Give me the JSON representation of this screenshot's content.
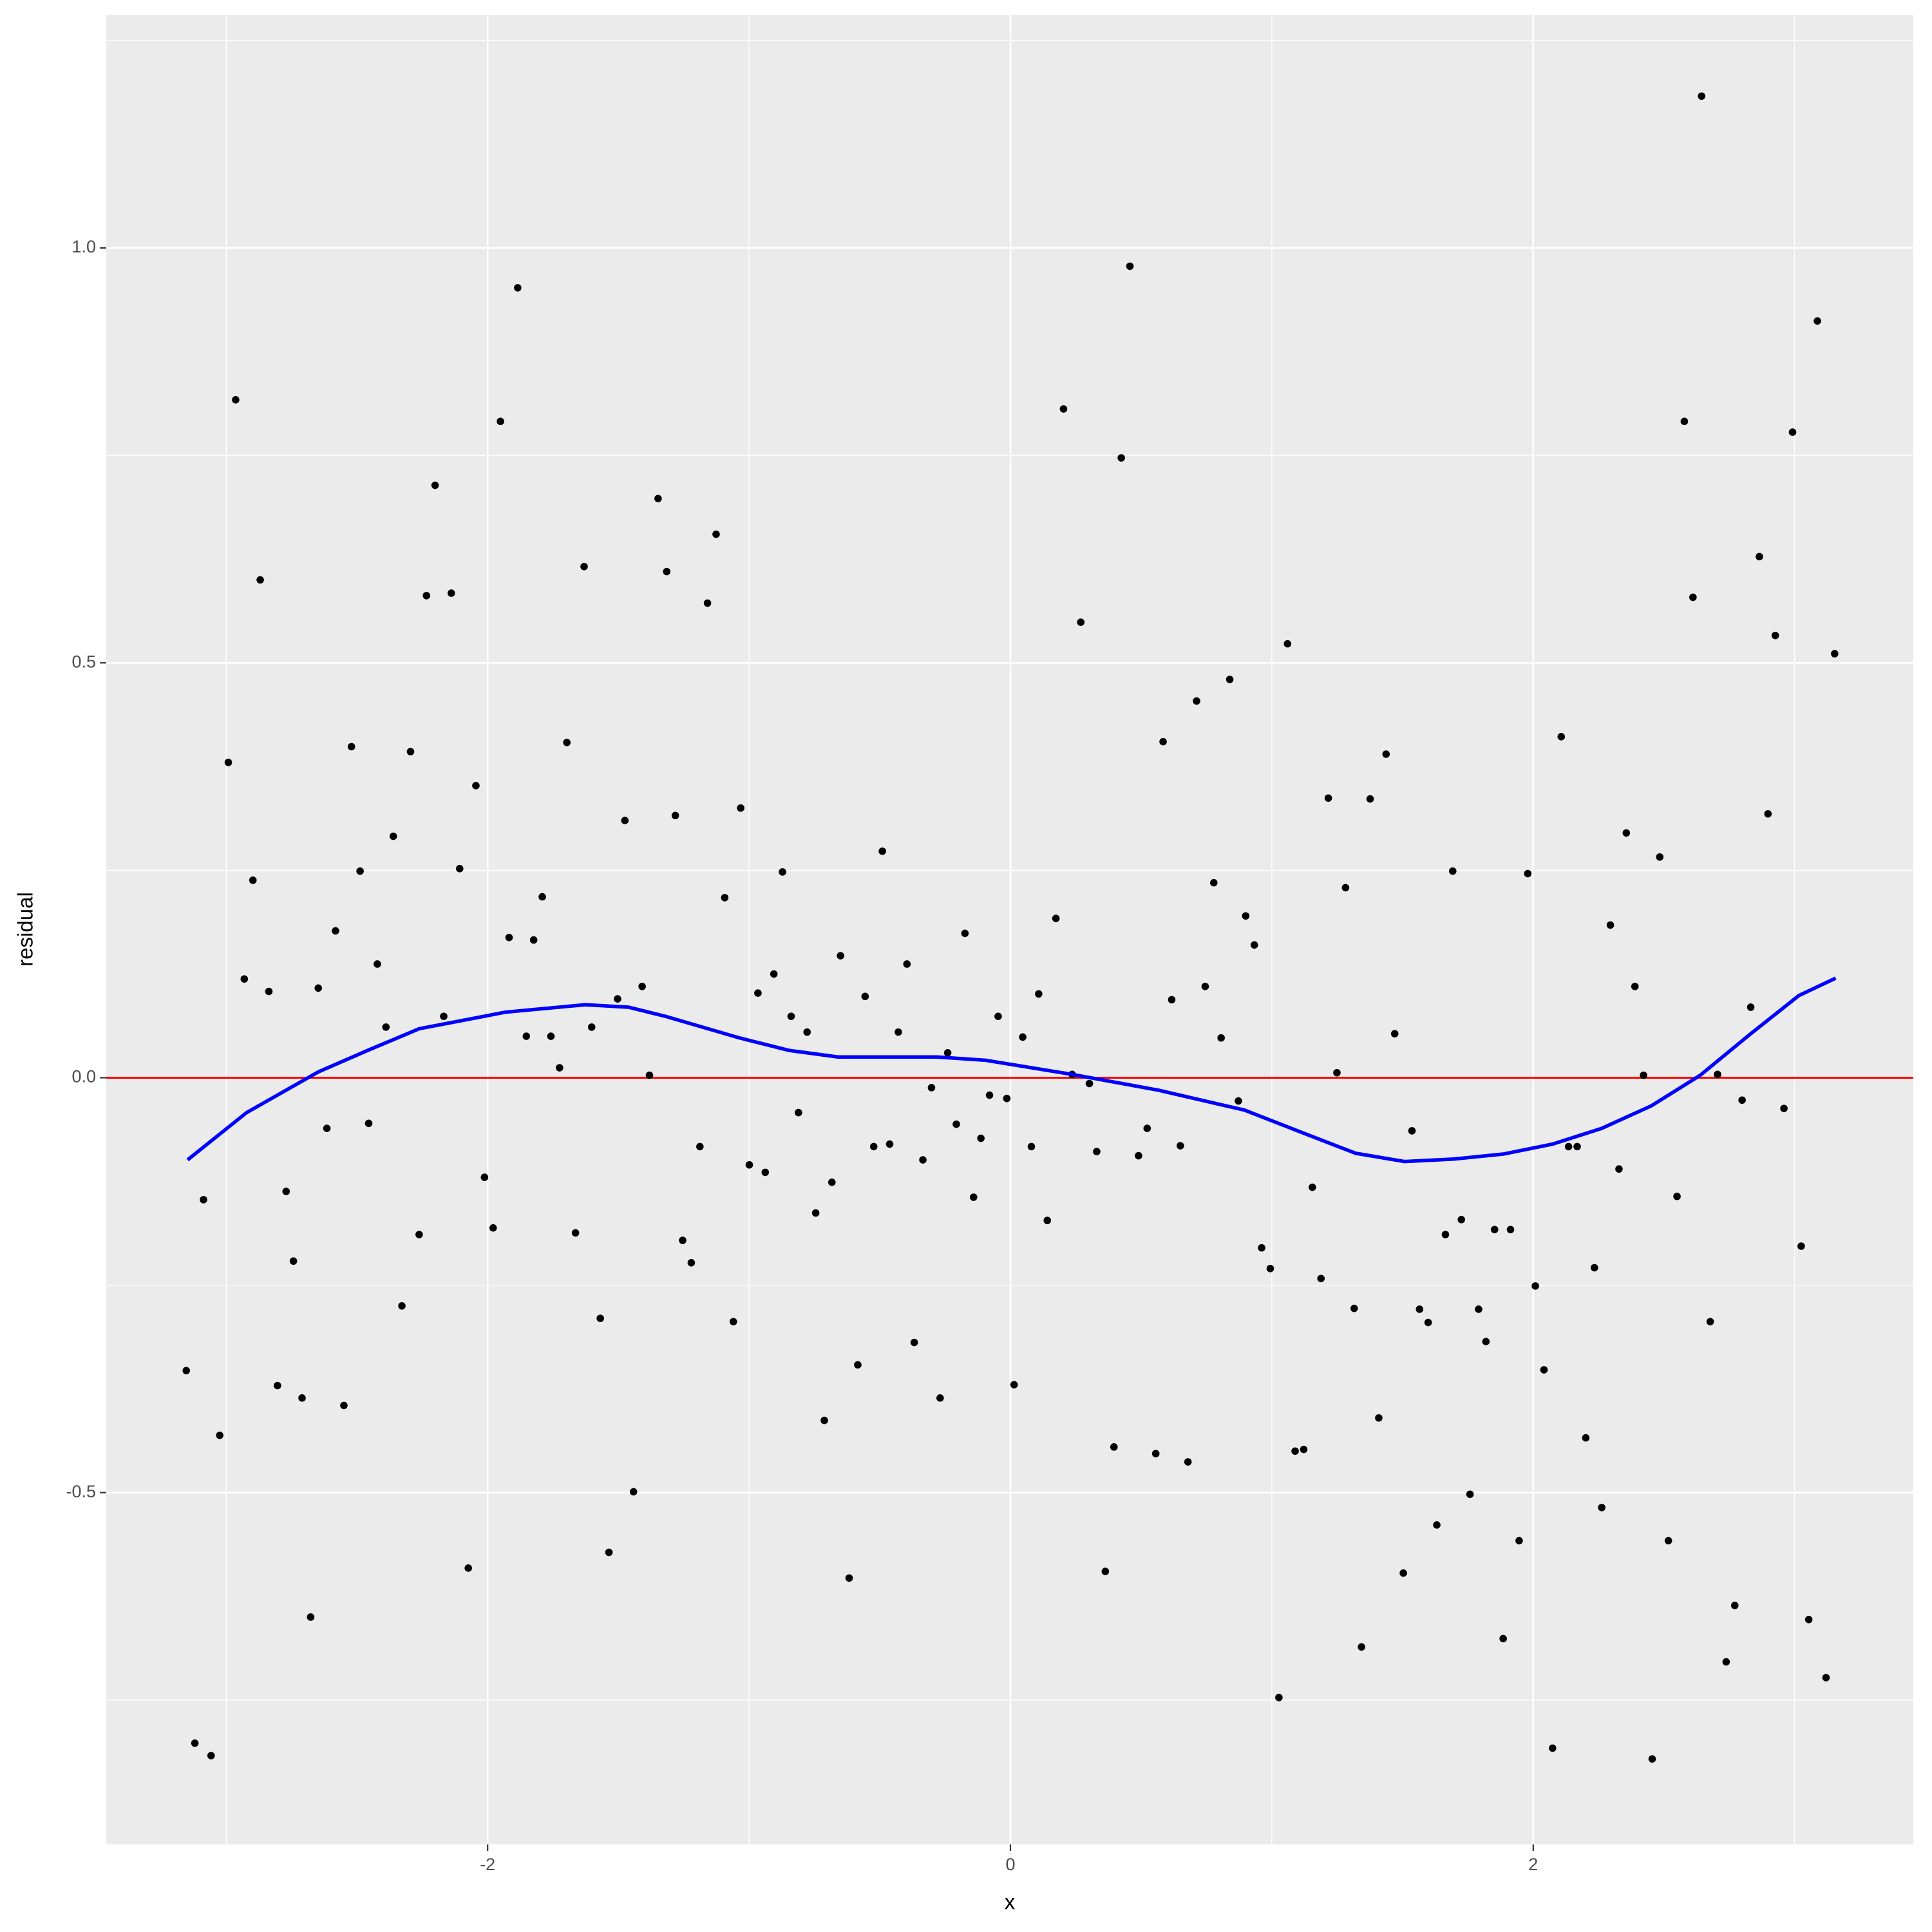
{
  "chart_data": {
    "type": "scatter",
    "xlabel": "x",
    "ylabel": "residual",
    "xlim": [
      -3.459,
      3.454
    ],
    "ylim": [
      -0.924,
      1.281
    ],
    "xticks": [
      -2,
      0,
      2
    ],
    "yticks": [
      -0.5,
      {
        "value": 0,
        "label": "0.0"
      },
      0.5,
      {
        "value": 1,
        "label": "1.0"
      }
    ],
    "x_minor_grid": [
      -3,
      -1,
      1,
      3
    ],
    "y_minor_grid": [
      -0.75,
      -0.25,
      0.25,
      0.75,
      1.25
    ],
    "grid": true,
    "hline": {
      "value": 0,
      "color": "#ff0000"
    },
    "series": [
      {
        "type": "scatter",
        "color": "#000000",
        "x": [
          -3.153,
          -3.12,
          -3.087,
          -3.058,
          -3.025,
          -2.992,
          -2.964,
          -2.931,
          -2.898,
          -2.87,
          -2.837,
          -2.804,
          -2.771,
          -2.743,
          -2.71,
          -2.677,
          -2.648,
          -2.615,
          -2.582,
          -2.55,
          -2.521,
          -2.488,
          -2.455,
          -2.422,
          -2.389,
          -2.361,
          -2.328,
          -2.295,
          -2.262,
          -2.234,
          -2.201,
          -2.168,
          -2.139,
          -2.107,
          -2.074,
          -2.045,
          -2.012,
          -1.979,
          -1.951,
          -1.918,
          -1.885,
          -1.852,
          -1.824,
          -1.791,
          -1.758,
          -1.725,
          -1.697,
          -1.664,
          -1.631,
          -1.602,
          -1.569,
          -1.536,
          -1.503,
          -1.475,
          -1.442,
          -1.409,
          -1.381,
          -1.348,
          -1.315,
          -1.282,
          -1.254,
          -1.221,
          -1.188,
          -1.159,
          -1.126,
          -1.093,
          -1.06,
          -1.032,
          -0.999,
          -0.966,
          -0.938,
          -0.905,
          -0.872,
          -0.839,
          -0.811,
          -0.778,
          -0.745,
          -0.712,
          -0.683,
          -0.65,
          -0.617,
          -0.584,
          -0.556,
          -0.523,
          -0.49,
          -0.462,
          -0.429,
          -0.396,
          -0.368,
          -0.335,
          -0.302,
          -0.269,
          -0.24,
          -0.207,
          -0.174,
          -0.141,
          -0.113,
          -0.08,
          -0.047,
          -0.014,
          0.014,
          0.047,
          0.08,
          0.108,
          0.141,
          0.174,
          0.203,
          0.236,
          0.269,
          0.302,
          0.33,
          0.363,
          0.396,
          0.424,
          0.457,
          0.49,
          0.523,
          0.556,
          0.584,
          0.617,
          0.65,
          0.679,
          0.712,
          0.745,
          0.778,
          0.806,
          0.839,
          0.872,
          0.9,
          0.933,
          0.961,
          0.994,
          1.027,
          1.06,
          1.089,
          1.122,
          1.155,
          1.188,
          1.216,
          1.249,
          1.282,
          1.315,
          1.343,
          1.376,
          1.409,
          1.437,
          1.47,
          1.503,
          1.536,
          1.565,
          1.598,
          1.631,
          1.664,
          1.692,
          1.725,
          1.758,
          1.791,
          1.819,
          1.852,
          1.885,
          1.913,
          1.946,
          1.979,
          2.008,
          2.041,
          2.074,
          2.107,
          2.135,
          2.168,
          2.201,
          2.234,
          2.262,
          2.295,
          2.328,
          2.356,
          2.389,
          2.422,
          2.455,
          2.484,
          2.517,
          2.55,
          2.578,
          2.611,
          2.644,
          2.677,
          2.705,
          2.738,
          2.771,
          2.799,
          2.832,
          2.865,
          2.898,
          2.926,
          2.959,
          2.992,
          3.025,
          3.054,
          3.087,
          3.12,
          3.153
        ],
        "values": [
          -0.353,
          -0.802,
          -0.147,
          -0.817,
          -0.431,
          0.38,
          0.817,
          0.119,
          0.238,
          0.6,
          0.104,
          -0.371,
          -0.137,
          -0.221,
          -0.386,
          -0.65,
          0.108,
          -0.061,
          0.177,
          -0.395,
          0.399,
          0.249,
          -0.055,
          0.137,
          0.061,
          0.291,
          -0.275,
          0.393,
          -0.189,
          0.581,
          0.714,
          0.074,
          0.584,
          0.252,
          -0.591,
          0.352,
          -0.12,
          -0.181,
          0.791,
          0.169,
          0.952,
          0.05,
          0.166,
          0.218,
          0.05,
          0.012,
          0.404,
          -0.187,
          0.616,
          0.061,
          -0.29,
          -0.572,
          0.095,
          0.31,
          -0.499,
          0.11,
          0.003,
          0.698,
          0.61,
          0.316,
          -0.196,
          -0.223,
          -0.083,
          0.572,
          0.655,
          0.217,
          -0.294,
          0.325,
          -0.105,
          0.102,
          -0.114,
          0.125,
          0.248,
          0.074,
          -0.042,
          0.055,
          -0.163,
          -0.413,
          -0.126,
          0.147,
          -0.603,
          -0.346,
          0.098,
          -0.083,
          0.273,
          -0.08,
          0.055,
          0.137,
          -0.319,
          -0.099,
          -0.012,
          -0.386,
          0.03,
          -0.056,
          0.174,
          -0.144,
          -0.073,
          -0.021,
          0.074,
          -0.025,
          -0.37,
          0.049,
          -0.083,
          0.101,
          -0.172,
          0.192,
          0.806,
          0.004,
          0.549,
          -0.007,
          -0.089,
          -0.595,
          -0.445,
          0.747,
          0.978,
          -0.094,
          -0.061,
          -0.453,
          0.405,
          0.094,
          -0.082,
          -0.463,
          0.454,
          0.11,
          0.235,
          0.048,
          0.48,
          -0.028,
          0.195,
          0.16,
          -0.205,
          -0.23,
          -0.747,
          0.523,
          -0.45,
          -0.448,
          -0.132,
          -0.242,
          0.337,
          0.006,
          0.229,
          -0.278,
          -0.686,
          0.336,
          -0.41,
          0.39,
          0.053,
          -0.597,
          -0.064,
          -0.279,
          -0.295,
          -0.539,
          -0.189,
          0.249,
          -0.171,
          -0.502,
          -0.279,
          -0.318,
          -0.183,
          -0.676,
          -0.183,
          -0.558,
          0.246,
          -0.251,
          -0.352,
          -0.808,
          0.411,
          -0.083,
          -0.083,
          -0.434,
          -0.229,
          -0.518,
          0.184,
          -0.11,
          0.295,
          0.11,
          0.003,
          -0.821,
          0.266,
          -0.558,
          -0.143,
          0.791,
          0.579,
          1.183,
          -0.294,
          0.004,
          -0.704,
          -0.636,
          -0.027,
          0.085,
          0.628,
          0.318,
          0.533,
          -0.037,
          0.778,
          -0.203,
          -0.653,
          0.912,
          -0.723,
          0.511
        ]
      },
      {
        "type": "line",
        "color": "#0000ff",
        "x": [
          -3.148,
          -2.922,
          -2.648,
          -2.451,
          -2.262,
          -1.932,
          -1.626,
          -1.461,
          -1.32,
          -1.037,
          -0.848,
          -0.66,
          -0.283,
          -0.094,
          0.236,
          0.566,
          0.895,
          1.131,
          1.32,
          1.508,
          1.697,
          1.885,
          2.074,
          2.262,
          2.451,
          2.639,
          2.828,
          3.016,
          3.157
        ],
        "values": [
          -0.099,
          -0.042,
          0.007,
          0.034,
          0.059,
          0.079,
          0.088,
          0.085,
          0.074,
          0.048,
          0.033,
          0.025,
          0.025,
          0.021,
          0.004,
          -0.015,
          -0.039,
          -0.068,
          -0.091,
          -0.101,
          -0.098,
          -0.092,
          -0.08,
          -0.061,
          -0.034,
          0.003,
          0.052,
          0.099,
          0.12
        ]
      }
    ]
  }
}
